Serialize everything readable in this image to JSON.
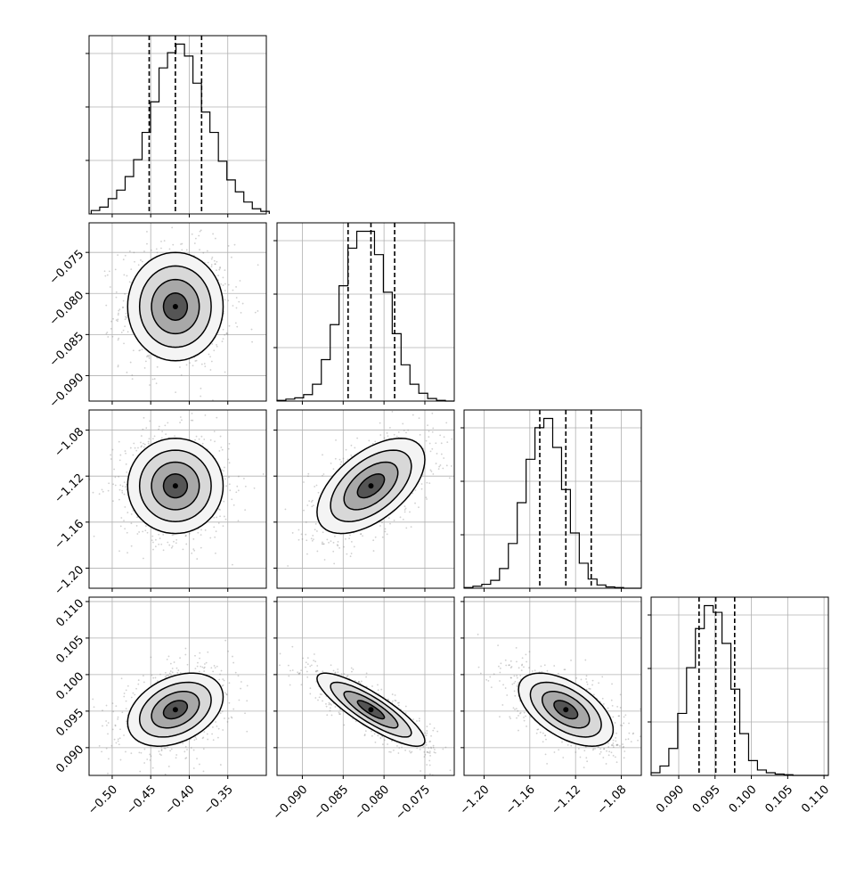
{
  "chart_data": {
    "type": "corner",
    "grid": true,
    "parameters": [
      {
        "range": [
          -0.53,
          -0.3
        ],
        "ticks": [
          -0.5,
          -0.45,
          -0.4,
          -0.35
        ],
        "tick_labels": [
          "−0.50",
          "−0.45",
          "−0.40",
          "−0.35"
        ],
        "quantiles": [
          -0.452,
          -0.418,
          -0.384
        ],
        "hist_edges_start": -0.5272,
        "hist_bin_width": 0.011,
        "hist_counts": [
          4,
          8,
          18,
          28,
          44,
          64,
          96,
          132,
          172,
          190,
          200,
          186,
          154,
          120,
          96,
          62,
          40,
          26,
          14,
          6,
          3
        ]
      },
      {
        "range": [
          -0.0931,
          -0.0714
        ],
        "ticks": [
          -0.09,
          -0.085,
          -0.08,
          -0.075
        ],
        "tick_labels": [
          "−0.090",
          "−0.085",
          "−0.080",
          "−0.075"
        ],
        "quantiles": [
          -0.0844,
          -0.0816,
          -0.0787
        ],
        "hist_edges_start": -0.0931,
        "hist_bin_width": 0.001085,
        "hist_counts": [
          1,
          3,
          5,
          10,
          26,
          64,
          118,
          178,
          236,
          262,
          262,
          226,
          168,
          104,
          56,
          26,
          12,
          4,
          1,
          0
        ]
      },
      {
        "range": [
          -1.2175,
          -1.0625
        ],
        "ticks": [
          -1.2,
          -1.16,
          -1.12,
          -1.08
        ],
        "tick_labels": [
          "−1.20",
          "−1.16",
          "−1.12",
          "−1.08"
        ],
        "quantiles": [
          -1.1513,
          -1.1285,
          -1.1063
        ],
        "hist_edges_start": -1.2175,
        "hist_bin_width": 0.00775,
        "hist_counts": [
          1,
          3,
          6,
          12,
          30,
          68,
          130,
          196,
          244,
          258,
          214,
          150,
          84,
          38,
          14,
          5,
          2,
          1,
          0,
          0
        ]
      },
      {
        "range": [
          0.0862,
          0.1106
        ],
        "ticks": [
          0.09,
          0.095,
          0.1,
          0.105,
          0.11
        ],
        "tick_labels": [
          "0.090",
          "0.095",
          "0.100",
          "0.105",
          "0.110"
        ],
        "quantiles": [
          0.0928,
          0.0951,
          0.0977
        ],
        "hist_edges_start": 0.0862,
        "hist_bin_width": 0.00122,
        "hist_counts": [
          4,
          14,
          40,
          92,
          160,
          218,
          252,
          242,
          196,
          128,
          62,
          22,
          8,
          4,
          2,
          1,
          0,
          0,
          0,
          0
        ]
      }
    ],
    "pairs": [
      {
        "row": 1,
        "col": 0,
        "center": [
          -0.418,
          -0.0816
        ],
        "sigma": [
          0.031,
          0.0033
        ],
        "rho": 0.0
      },
      {
        "row": 2,
        "col": 0,
        "center": [
          -0.418,
          -1.1285
        ],
        "sigma": [
          0.031,
          0.0207
        ],
        "rho": 0.0
      },
      {
        "row": 2,
        "col": 1,
        "center": [
          -0.0816,
          -1.1285
        ],
        "sigma": [
          0.0033,
          0.0207
        ],
        "rho": 0.55
      },
      {
        "row": 3,
        "col": 0,
        "center": [
          -0.418,
          0.0952
        ],
        "sigma": [
          0.031,
          0.0025
        ],
        "rho": 0.35
      },
      {
        "row": 3,
        "col": 1,
        "center": [
          -0.0816,
          0.0952
        ],
        "sigma": [
          0.0033,
          0.0025
        ],
        "rho": -0.85
      },
      {
        "row": 3,
        "col": 2,
        "center": [
          -1.1285,
          0.0952
        ],
        "sigma": [
          0.0207,
          0.0025
        ],
        "rho": -0.55
      }
    ],
    "contour_levels_sigma": [
      0.5,
      1.0,
      1.5,
      2.0
    ]
  }
}
